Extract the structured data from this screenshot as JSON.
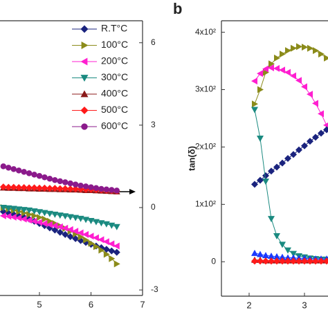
{
  "chart_data": [
    {
      "type": "line",
      "x": [
        4.3,
        4.4,
        4.5,
        4.6,
        4.7,
        4.8,
        4.9,
        5.0,
        5.1,
        5.2,
        5.3,
        5.4,
        5.5,
        5.6,
        5.7,
        5.8,
        5.9,
        6.0,
        6.1,
        6.2,
        6.3,
        6.4,
        6.5
      ],
      "xlim": [
        4.2,
        7
      ],
      "xticks": [
        5,
        6,
        7
      ],
      "ylim": [
        -3.2,
        6.8
      ],
      "yticks": [
        -3,
        0,
        3,
        6
      ],
      "yaxis_side": "right",
      "legend": "top-right",
      "series": [
        {
          "name": "R.T°C",
          "color": "#1a237e",
          "marker": "diamond",
          "values": [
            -0.15,
            -0.2,
            -0.25,
            -0.3,
            -0.35,
            -0.42,
            -0.5,
            -0.58,
            -0.66,
            -0.74,
            -0.82,
            -0.9,
            -0.98,
            -1.06,
            -1.13,
            -1.2,
            -1.27,
            -1.34,
            -1.4,
            -1.46,
            -1.52,
            -1.58,
            -1.63
          ]
        },
        {
          "name": "100°C",
          "color": "#8b8b1a",
          "marker": "triangle-right",
          "values": [
            0,
            -0.05,
            -0.1,
            -0.15,
            -0.2,
            -0.25,
            -0.3,
            -0.36,
            -0.42,
            -0.5,
            -0.58,
            -0.67,
            -0.76,
            -0.86,
            -0.96,
            -1.07,
            -1.18,
            -1.3,
            -1.42,
            -1.55,
            -1.7,
            -1.86,
            -2.05
          ]
        },
        {
          "name": "200°C",
          "color": "#ff1fd0",
          "marker": "triangle-left",
          "values": [
            -0.3,
            -0.32,
            -0.35,
            -0.38,
            -0.42,
            -0.46,
            -0.5,
            -0.54,
            -0.58,
            -0.62,
            -0.66,
            -0.7,
            -0.75,
            -0.8,
            -0.86,
            -0.92,
            -0.98,
            -1.04,
            -1.1,
            -1.17,
            -1.24,
            -1.32,
            -1.4
          ]
        },
        {
          "name": "300°C",
          "color": "#1a8a80",
          "marker": "triangle-down",
          "values": [
            0,
            -0.02,
            -0.04,
            -0.06,
            -0.08,
            -0.1,
            -0.13,
            -0.16,
            -0.19,
            -0.22,
            -0.25,
            -0.28,
            -0.31,
            -0.34,
            -0.37,
            -0.4,
            -0.44,
            -0.48,
            -0.52,
            -0.56,
            -0.6,
            -0.65,
            -0.7
          ]
        },
        {
          "name": "400°C",
          "color": "#8b1a1a",
          "marker": "triangle-up",
          "values": [
            0.72,
            0.71,
            0.71,
            0.7,
            0.7,
            0.69,
            0.69,
            0.68,
            0.68,
            0.67,
            0.67,
            0.66,
            0.66,
            0.65,
            0.65,
            0.64,
            0.63,
            0.63,
            0.62,
            0.61,
            0.6,
            0.59,
            0.58
          ]
        },
        {
          "name": "500°C",
          "color": "#ff1a1a",
          "marker": "diamond",
          "values": [
            0.75,
            0.74,
            0.74,
            0.73,
            0.73,
            0.72,
            0.72,
            0.71,
            0.71,
            0.7,
            0.7,
            0.69,
            0.69,
            0.68,
            0.68,
            0.67,
            0.66,
            0.66,
            0.65,
            0.64,
            0.63,
            0.62,
            0.6
          ]
        },
        {
          "name": "600°C",
          "color": "#8b1a8b",
          "marker": "circle",
          "values": [
            1.5,
            1.45,
            1.4,
            1.35,
            1.3,
            1.25,
            1.2,
            1.15,
            1.1,
            1.05,
            1.0,
            0.96,
            0.92,
            0.88,
            0.84,
            0.8,
            0.77,
            0.74,
            0.71,
            0.68,
            0.66,
            0.64,
            0.62
          ]
        }
      ]
    },
    {
      "type": "line",
      "panel_label": "b",
      "y_label": "tan(δ)",
      "x": [
        2.1,
        2.2,
        2.3,
        2.4,
        2.5,
        2.6,
        2.7,
        2.8,
        2.9,
        3.0,
        3.1,
        3.2,
        3.3,
        3.4
      ],
      "xlim": [
        1.5,
        3.5
      ],
      "xticks": [
        2,
        3
      ],
      "ylim": [
        -60,
        420
      ],
      "yticks": [
        0,
        {
          "value": 100,
          "label": "1x10²"
        },
        {
          "value": 200,
          "label": "2x10²"
        },
        {
          "value": 300,
          "label": "3x10²"
        },
        {
          "value": 400,
          "label": "4x10²"
        }
      ],
      "yaxis_side": "left",
      "series": [
        {
          "color": "#8b8b1a",
          "marker": "triangle-right",
          "values": [
            275,
            300,
            330,
            345,
            355,
            362,
            368,
            372,
            375,
            374,
            372,
            368,
            362,
            355
          ]
        },
        {
          "color": "#ff1fd0",
          "marker": "triangle-left",
          "values": [
            315,
            328,
            336,
            338,
            337,
            334,
            330,
            324,
            316,
            305,
            292,
            276,
            258,
            238
          ]
        },
        {
          "color": "#1a237e",
          "marker": "diamond",
          "values": [
            135,
            142,
            150,
            158,
            165,
            172,
            180,
            187,
            195,
            202,
            210,
            217,
            224,
            230
          ]
        },
        {
          "color": "#1a8a80",
          "marker": "triangle-down",
          "values": [
            265,
            215,
            140,
            75,
            45,
            30,
            20,
            14,
            10,
            8,
            6,
            5,
            4,
            4
          ]
        },
        {
          "color": "#1a3aff",
          "marker": "triangle-up",
          "values": [
            15,
            13,
            11,
            10,
            9,
            8,
            7,
            7,
            6,
            6,
            5,
            5,
            5,
            5
          ]
        },
        {
          "color": "#8b1a1a",
          "marker": "triangle-up",
          "values": [
            3,
            3,
            2,
            2,
            2,
            2,
            2,
            2,
            2,
            2,
            2,
            2,
            2,
            2
          ]
        },
        {
          "color": "#ff1a1a",
          "marker": "diamond",
          "values": [
            1,
            1,
            1,
            1,
            1,
            1,
            1,
            1,
            1,
            1,
            1,
            1,
            1,
            1
          ]
        }
      ]
    }
  ]
}
